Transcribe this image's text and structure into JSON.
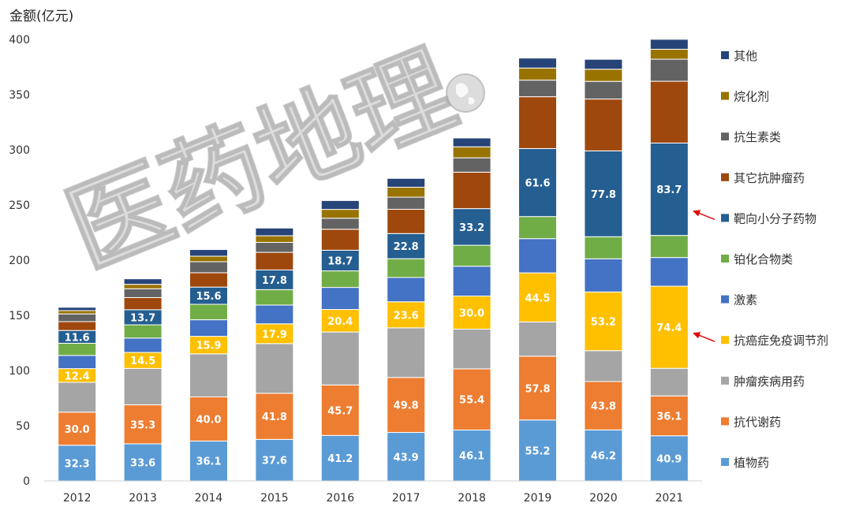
{
  "chart_data": {
    "type": "bar",
    "stacked": true,
    "ylabel": "金额(亿元)",
    "ylim": [
      0,
      400
    ],
    "yticks": [
      0,
      50,
      100,
      150,
      200,
      250,
      300,
      350,
      400
    ],
    "grid": false,
    "legend_position": "right",
    "categories": [
      "2012",
      "2013",
      "2014",
      "2015",
      "2016",
      "2017",
      "2018",
      "2019",
      "2020",
      "2021"
    ],
    "series": [
      {
        "name": "植物药",
        "color": "#5b9bd5",
        "values": [
          32.3,
          33.6,
          36.1,
          37.6,
          41.2,
          43.9,
          46.1,
          55.2,
          46.2,
          40.9
        ],
        "labels": [
          "32.3",
          "33.6",
          "36.1",
          "37.6",
          "41.2",
          "43.9",
          "46.1",
          "55.2",
          "46.2",
          "40.9"
        ]
      },
      {
        "name": "抗代谢药",
        "color": "#ed7d31",
        "values": [
          30.0,
          35.3,
          40.0,
          41.8,
          45.7,
          49.8,
          55.4,
          57.8,
          43.8,
          36.1
        ],
        "labels": [
          "30.0",
          "35.3",
          "40.0",
          "41.8",
          "45.7",
          "49.8",
          "55.4",
          "57.8",
          "43.8",
          "36.1"
        ]
      },
      {
        "name": "肿瘤疾病用药",
        "color": "#a5a5a5",
        "values": [
          27,
          33,
          39,
          45,
          48,
          45,
          36,
          31,
          28,
          25
        ],
        "labels": []
      },
      {
        "name": "抗癌症免疫调节剂",
        "color": "#ffc000",
        "values": [
          12.4,
          14.5,
          15.9,
          17.9,
          20.4,
          23.6,
          30.0,
          44.5,
          53.2,
          74.4
        ],
        "labels": [
          "12.4",
          "14.5",
          "15.9",
          "17.9",
          "20.4",
          "23.6",
          "30.0",
          "44.5",
          "53.2",
          "74.4"
        ]
      },
      {
        "name": "激素",
        "color": "#4472c4",
        "values": [
          12,
          13,
          15,
          17,
          20,
          22,
          27,
          31,
          30,
          26
        ],
        "labels": []
      },
      {
        "name": "铂化合物类",
        "color": "#70ad47",
        "values": [
          11,
          12,
          14,
          14,
          15,
          17,
          19,
          20,
          20,
          20
        ],
        "labels": []
      },
      {
        "name": "靶向小分子药物",
        "color": "#255e91",
        "values": [
          11.6,
          13.7,
          15.6,
          17.8,
          18.7,
          22.8,
          33.2,
          61.6,
          77.8,
          83.7
        ],
        "labels": [
          "11.6",
          "13.7",
          "15.6",
          "17.8",
          "18.7",
          "22.8",
          "33.2",
          "61.6",
          "77.8",
          "83.7"
        ]
      },
      {
        "name": "其它抗肿瘤药",
        "color": "#9e480e",
        "values": [
          8,
          11,
          13,
          16,
          19,
          22,
          33,
          47,
          47,
          56
        ],
        "labels": []
      },
      {
        "name": "抗生素类",
        "color": "#636363",
        "values": [
          7,
          8,
          10,
          9,
          10,
          11,
          13,
          15,
          16,
          20
        ],
        "labels": []
      },
      {
        "name": "烷化剂",
        "color": "#997300",
        "values": [
          3,
          4,
          5,
          6,
          8,
          9,
          10,
          11,
          11,
          9
        ],
        "labels": []
      },
      {
        "name": "其他",
        "color": "#264478",
        "values": [
          3,
          5,
          6,
          7,
          8,
          8,
          8,
          9,
          9,
          9
        ],
        "labels": []
      }
    ],
    "legend_order": [
      "其他",
      "烷化剂",
      "抗生素类",
      "其它抗肿瘤药",
      "靶向小分子药物",
      "铂化合物类",
      "激素",
      "抗癌症免疫调节剂",
      "肿瘤疾病用药",
      "抗代谢药",
      "植物药"
    ],
    "highlighted_legend_items": [
      "靶向小分子药物",
      "抗癌症免疫调节剂"
    ],
    "annotation_arrow_color": "#e00000"
  },
  "watermark": "医药地理"
}
